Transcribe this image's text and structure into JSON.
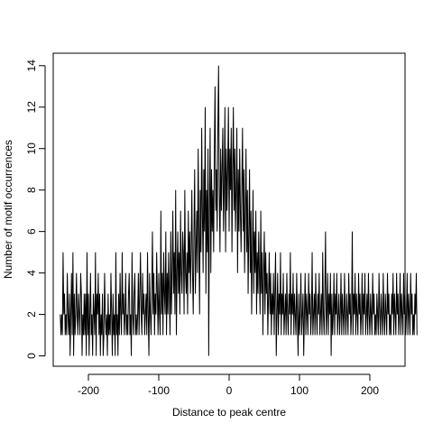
{
  "chart_data": {
    "type": "line",
    "title": "",
    "xlabel": "Distance to peak centre",
    "ylabel": "Number of motif occurrences",
    "xlim": [
      -250,
      250
    ],
    "ylim": [
      -0.5,
      14.6
    ],
    "xticks": [
      -200,
      -100,
      0,
      100,
      200
    ],
    "xtick_labels": [
      "-200",
      "-100",
      "0",
      "100",
      "200"
    ],
    "yticks": [
      0,
      2,
      4,
      6,
      8,
      10,
      12,
      14
    ],
    "ytick_labels": [
      "0",
      "2",
      "4",
      "6",
      "8",
      "10",
      "12",
      "14"
    ],
    "grid": false,
    "line_color": "#000000",
    "series": [
      {
        "x_start": -240,
        "x_step": 1,
        "values": [
          2,
          1,
          2,
          1,
          5,
          2,
          3,
          1,
          2,
          1,
          4,
          2,
          1,
          3,
          0,
          2,
          4,
          1,
          5,
          0,
          3,
          1,
          2,
          4,
          2,
          1,
          3,
          2,
          1,
          4,
          3,
          0,
          2,
          1,
          3,
          1,
          3,
          0,
          5,
          1,
          3,
          0,
          2,
          4,
          1,
          2,
          0,
          3,
          2,
          1,
          5,
          0,
          3,
          2,
          4,
          1,
          3,
          0,
          2,
          1,
          3,
          0,
          1,
          4,
          2,
          1,
          2,
          0,
          3,
          1,
          2,
          1,
          4,
          2,
          0,
          3,
          1,
          2,
          0,
          5,
          1,
          2,
          0,
          3,
          1,
          4,
          2,
          1,
          5,
          2,
          3,
          1,
          2,
          4,
          1,
          2,
          1,
          3,
          4,
          1,
          2,
          0,
          5,
          2,
          1,
          3,
          4,
          1,
          2,
          1,
          2,
          4,
          1,
          3,
          5,
          2,
          1,
          4,
          2,
          3,
          1,
          2,
          3,
          1,
          5,
          2,
          0,
          4,
          2,
          1,
          3,
          6,
          2,
          4,
          1,
          3,
          2,
          5,
          3,
          1,
          4,
          2,
          1,
          7,
          2,
          4,
          1,
          5,
          3,
          2,
          6,
          1,
          4,
          2,
          5,
          3,
          1,
          6,
          2,
          4,
          7,
          3,
          5,
          2,
          8,
          1,
          4,
          6,
          3,
          5,
          2,
          7,
          4,
          3,
          6,
          5,
          2,
          8,
          4,
          3,
          5,
          2,
          7,
          4,
          6,
          3,
          5,
          8,
          4,
          2,
          6,
          9,
          3,
          5,
          7,
          4,
          10,
          6,
          2,
          8,
          5,
          11,
          7,
          4,
          9,
          6,
          12,
          3,
          8,
          5,
          10,
          0,
          7,
          11,
          4,
          9,
          6,
          8,
          5,
          10,
          13,
          7,
          9,
          6,
          11,
          14,
          8,
          5,
          10,
          7,
          9,
          11,
          6,
          8,
          12,
          5,
          10,
          7,
          9,
          12,
          6,
          10,
          8,
          11,
          5,
          9,
          12,
          7,
          10,
          6,
          8,
          11,
          4,
          9,
          6,
          10,
          7,
          5,
          8,
          11,
          6,
          9,
          4,
          7,
          10,
          5,
          8,
          3,
          6,
          9,
          4,
          7,
          2,
          5,
          8,
          3,
          6,
          4,
          7,
          2,
          5,
          3,
          6,
          4,
          2,
          7,
          3,
          5,
          1,
          4,
          6,
          2,
          5,
          3,
          4,
          1,
          3,
          5,
          2,
          4,
          1,
          3,
          2,
          4,
          1,
          3,
          5,
          0,
          2,
          4,
          1,
          3,
          2,
          5,
          1,
          3,
          2,
          4,
          1,
          2,
          3,
          1,
          4,
          2,
          1,
          3,
          2,
          5,
          1,
          3,
          2,
          4,
          1,
          3,
          2,
          1,
          4,
          2,
          0,
          3,
          1,
          2,
          4,
          1,
          2,
          3,
          0,
          2,
          4,
          1,
          3,
          2,
          1,
          4,
          2,
          3,
          1,
          2,
          5,
          1,
          2,
          3,
          1,
          4,
          2,
          1,
          3,
          2,
          4,
          1,
          2,
          3,
          1,
          5,
          2,
          1,
          3,
          6,
          1,
          2,
          4,
          1,
          3,
          2,
          4,
          0,
          3,
          1,
          2,
          4,
          1,
          3,
          2,
          4,
          1,
          2,
          3,
          1,
          2,
          4,
          1,
          3,
          2,
          1,
          4,
          2,
          1,
          3,
          2,
          1,
          4,
          2,
          3,
          1,
          2,
          6,
          1,
          3,
          2,
          4,
          1,
          3,
          2,
          1,
          4,
          2,
          3,
          1,
          2,
          4,
          1,
          3,
          2,
          4,
          1,
          2,
          3,
          1,
          4,
          2,
          1,
          3,
          2,
          1,
          4,
          2,
          3,
          1,
          2,
          1,
          3,
          2,
          1,
          4,
          2,
          1,
          3,
          2,
          1,
          4,
          2,
          1,
          3,
          2,
          1,
          4,
          2,
          3,
          1,
          2,
          1,
          3,
          2,
          4,
          1,
          3,
          2,
          1,
          4,
          2,
          3,
          1,
          2,
          4,
          1,
          3,
          2,
          1,
          4,
          2,
          3,
          1,
          2,
          4,
          1,
          3,
          2,
          1,
          4,
          2,
          3,
          1,
          2,
          1,
          3,
          2,
          4,
          1
        ]
      }
    ]
  }
}
